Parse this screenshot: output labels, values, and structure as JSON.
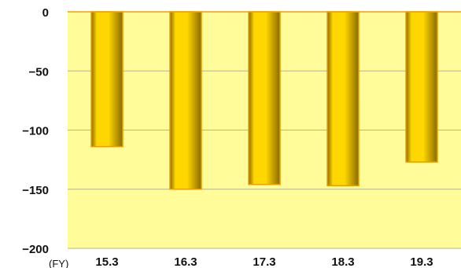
{
  "chart_data": {
    "type": "bar",
    "x_unit_label": "(FY)",
    "categories": [
      "15.3",
      "16.3",
      "17.3",
      "18.3",
      "19.3"
    ],
    "values": [
      -114,
      -150,
      -146,
      -147,
      -127
    ],
    "ylim": [
      -200,
      0
    ],
    "yticks": [
      0,
      -50,
      -100,
      -150,
      -200
    ],
    "ytick_labels": [
      "0",
      "−50",
      "−100",
      "−150",
      "−200"
    ],
    "grid": true,
    "colors": {
      "plot_background": "#FFFC99",
      "bar_light": "#FFD700",
      "bar_dark": "#8A6A00",
      "bar_outline": "#E8A000",
      "zero_line": "#F2A000",
      "grid": "#B8B38A"
    }
  }
}
